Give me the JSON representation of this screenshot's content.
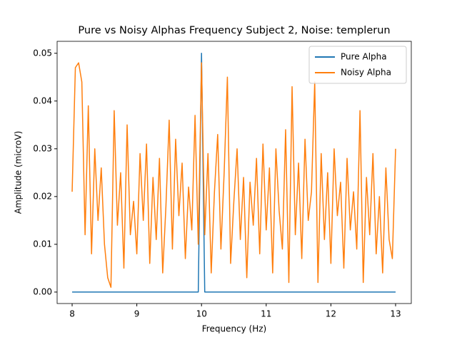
{
  "chart_data": {
    "type": "line",
    "title": "Pure vs Noisy Alphas Frequency Subject 2, Noise: templerun",
    "x_label": "Frequency (Hz)",
    "y_label": "Amplitude (microV)",
    "x": [
      8.0,
      8.05,
      8.1,
      8.15,
      8.2,
      8.25,
      8.3,
      8.35,
      8.4,
      8.45,
      8.5,
      8.55,
      8.6,
      8.65,
      8.7,
      8.75,
      8.8,
      8.85,
      8.9,
      8.95,
      9.0,
      9.05,
      9.1,
      9.15,
      9.2,
      9.25,
      9.3,
      9.35,
      9.4,
      9.45,
      9.5,
      9.55,
      9.6,
      9.65,
      9.7,
      9.75,
      9.8,
      9.85,
      9.9,
      9.95,
      10.0,
      10.05,
      10.1,
      10.15,
      10.2,
      10.25,
      10.3,
      10.35,
      10.4,
      10.45,
      10.5,
      10.55,
      10.6,
      10.65,
      10.7,
      10.75,
      10.8,
      10.85,
      10.9,
      10.95,
      11.0,
      11.05,
      11.1,
      11.15,
      11.2,
      11.25,
      11.3,
      11.35,
      11.4,
      11.45,
      11.5,
      11.55,
      11.6,
      11.65,
      11.7,
      11.75,
      11.8,
      11.85,
      11.9,
      11.95,
      12.0,
      12.05,
      12.1,
      12.15,
      12.2,
      12.25,
      12.3,
      12.35,
      12.4,
      12.45,
      12.5,
      12.55,
      12.6,
      12.65,
      12.7,
      12.75,
      12.8,
      12.85,
      12.9,
      12.95,
      13.0
    ],
    "series": [
      {
        "name": "Pure Alpha",
        "color": "#1f77b4",
        "values": [
          0,
          0,
          0,
          0,
          0,
          0,
          0,
          0,
          0,
          0,
          0,
          0,
          0,
          0,
          0,
          0,
          0,
          0,
          0,
          0,
          0,
          0,
          0,
          0,
          0,
          0,
          0,
          0,
          0,
          0,
          0,
          0,
          0,
          0,
          0,
          0,
          0,
          0,
          0,
          0,
          0.05,
          0,
          0,
          0,
          0,
          0,
          0,
          0,
          0,
          0,
          0,
          0,
          0,
          0,
          0,
          0,
          0,
          0,
          0,
          0,
          0,
          0,
          0,
          0,
          0,
          0,
          0,
          0,
          0,
          0,
          0,
          0,
          0,
          0,
          0,
          0,
          0,
          0,
          0,
          0,
          0,
          0,
          0,
          0,
          0,
          0,
          0,
          0,
          0,
          0,
          0,
          0,
          0,
          0,
          0,
          0,
          0,
          0,
          0,
          0,
          0
        ]
      },
      {
        "name": "Noisy Alpha",
        "color": "#ff7f0e",
        "values": [
          0.021,
          0.047,
          0.048,
          0.044,
          0.012,
          0.039,
          0.008,
          0.03,
          0.015,
          0.026,
          0.01,
          0.003,
          0.001,
          0.038,
          0.014,
          0.025,
          0.005,
          0.035,
          0.012,
          0.019,
          0.008,
          0.029,
          0.015,
          0.031,
          0.006,
          0.024,
          0.011,
          0.028,
          0.004,
          0.018,
          0.036,
          0.009,
          0.032,
          0.016,
          0.027,
          0.007,
          0.022,
          0.013,
          0.037,
          0.01,
          0.048,
          0.012,
          0.029,
          0.004,
          0.021,
          0.033,
          0.009,
          0.025,
          0.045,
          0.006,
          0.019,
          0.03,
          0.011,
          0.024,
          0.003,
          0.023,
          0.014,
          0.028,
          0.008,
          0.031,
          0.013,
          0.026,
          0.004,
          0.03,
          0.017,
          0.009,
          0.034,
          0.002,
          0.043,
          0.012,
          0.027,
          0.007,
          0.032,
          0.015,
          0.021,
          0.044,
          0.002,
          0.029,
          0.011,
          0.025,
          0.006,
          0.03,
          0.016,
          0.023,
          0.005,
          0.028,
          0.013,
          0.021,
          0.009,
          0.038,
          0.002,
          0.024,
          0.012,
          0.029,
          0.008,
          0.02,
          0.004,
          0.026,
          0.011,
          0.007,
          0.03
        ]
      }
    ],
    "xlim": [
      7.768,
      13.243
    ],
    "ylim": [
      -0.0024,
      0.0525
    ],
    "xticks": [
      8,
      9,
      10,
      11,
      12,
      13
    ],
    "yticks": [
      {
        "value": 0,
        "label": "0.00"
      },
      0.01,
      0.02,
      0.03,
      0.04,
      0.05
    ],
    "legend": "upper right"
  }
}
